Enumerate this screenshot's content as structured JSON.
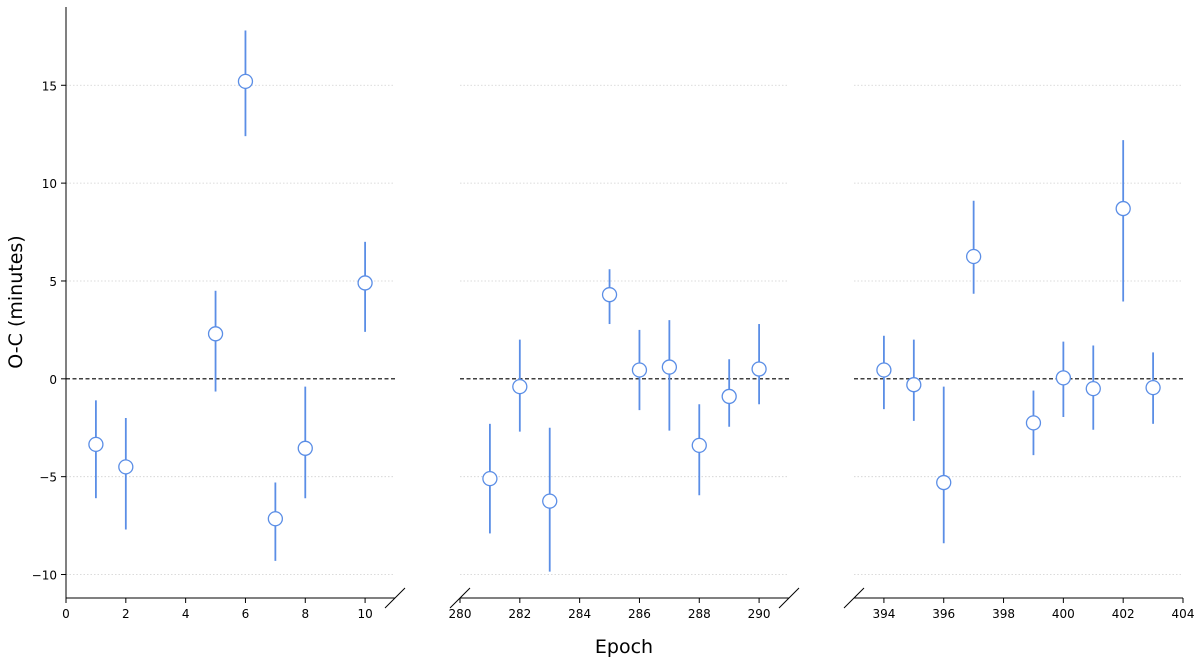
{
  "chart_data": {
    "type": "scatter",
    "xlabel": "Epoch",
    "ylabel": "O-C (minutes)",
    "ylim": [
      -11.2,
      19.0
    ],
    "yticks": [
      -10,
      -5,
      0,
      5,
      10,
      15
    ],
    "grid": "horizontal dotted",
    "reference_line": 0,
    "colors": {
      "marker_edge": "#5b8ee6",
      "marker_face": "#ffffff",
      "errorbar": "#5b8ee6",
      "zero_line": "#000000",
      "grid": "#d0d0d0"
    },
    "panels": [
      {
        "xlim": [
          0,
          11
        ],
        "xticks": [
          0,
          2,
          4,
          6,
          8,
          10
        ],
        "points": [
          {
            "x": 1,
            "y": -3.35,
            "lo": -6.1,
            "hi": -1.1
          },
          {
            "x": 2,
            "y": -4.5,
            "lo": -7.7,
            "hi": -2.0
          },
          {
            "x": 5,
            "y": 2.3,
            "lo": -0.65,
            "hi": 4.5
          },
          {
            "x": 6,
            "y": 15.2,
            "lo": 12.4,
            "hi": 17.8
          },
          {
            "x": 7,
            "y": -7.15,
            "lo": -9.3,
            "hi": -5.3
          },
          {
            "x": 8,
            "y": -3.55,
            "lo": -6.1,
            "hi": -0.4
          },
          {
            "x": 10,
            "y": 4.9,
            "lo": 2.4,
            "hi": 7.0
          }
        ]
      },
      {
        "xlim": [
          280,
          291
        ],
        "xticks": [
          280,
          282,
          284,
          286,
          288,
          290
        ],
        "points": [
          {
            "x": 281,
            "y": -5.1,
            "lo": -7.9,
            "hi": -2.3
          },
          {
            "x": 282,
            "y": -0.4,
            "lo": -2.7,
            "hi": 2.0
          },
          {
            "x": 283,
            "y": -6.25,
            "lo": -9.85,
            "hi": -2.5
          },
          {
            "x": 285,
            "y": 4.3,
            "lo": 2.8,
            "hi": 5.6
          },
          {
            "x": 286,
            "y": 0.45,
            "lo": -1.6,
            "hi": 2.5
          },
          {
            "x": 287,
            "y": 0.6,
            "lo": -2.65,
            "hi": 3.0
          },
          {
            "x": 288,
            "y": -3.4,
            "lo": -5.95,
            "hi": -1.3
          },
          {
            "x": 289,
            "y": -0.9,
            "lo": -2.45,
            "hi": 1.0
          },
          {
            "x": 290,
            "y": 0.5,
            "lo": -1.3,
            "hi": 2.8
          }
        ]
      },
      {
        "xlim": [
          393,
          404
        ],
        "xticks": [
          394,
          396,
          398,
          400,
          402,
          404
        ],
        "points": [
          {
            "x": 394,
            "y": 0.45,
            "lo": -1.55,
            "hi": 2.2
          },
          {
            "x": 395,
            "y": -0.3,
            "lo": -2.15,
            "hi": 2.0
          },
          {
            "x": 396,
            "y": -5.3,
            "lo": -8.4,
            "hi": -0.4
          },
          {
            "x": 397,
            "y": 6.25,
            "lo": 4.35,
            "hi": 9.1
          },
          {
            "x": 399,
            "y": -2.25,
            "lo": -3.9,
            "hi": -0.6
          },
          {
            "x": 400,
            "y": 0.05,
            "lo": -1.95,
            "hi": 1.9
          },
          {
            "x": 401,
            "y": -0.5,
            "lo": -2.6,
            "hi": 1.7
          },
          {
            "x": 402,
            "y": 8.7,
            "lo": 3.95,
            "hi": 12.2
          },
          {
            "x": 403,
            "y": -0.45,
            "lo": -2.3,
            "hi": 1.35
          }
        ]
      }
    ]
  }
}
